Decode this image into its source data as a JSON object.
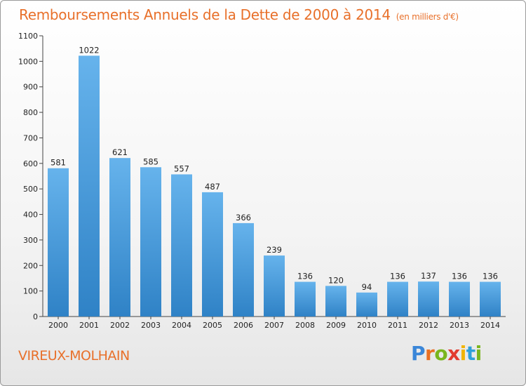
{
  "title": "Remboursements Annuels de la Dette de 2000 à 2014",
  "subtitle": "(en milliers d'€)",
  "commune": "VIREUX-MOLHAIN",
  "logo": {
    "letters": [
      "P",
      "r",
      "o",
      "x",
      "i",
      "t",
      "i"
    ],
    "colors": [
      "#3a86d8",
      "#e86f23",
      "#7ab51d",
      "#e23b2e",
      "#f1b400",
      "#2fa0d8",
      "#7ab51d"
    ]
  },
  "colors": {
    "title": "#e8702a",
    "bar_light": "#66b3ec",
    "bar_dark": "#2f82c6"
  },
  "chart_data": {
    "type": "bar",
    "title": "Remboursements Annuels de la Dette de 2000 à 2014",
    "subtitle": "(en milliers d'€)",
    "categories": [
      "2000",
      "2001",
      "2002",
      "2003",
      "2004",
      "2005",
      "2006",
      "2007",
      "2008",
      "2009",
      "2010",
      "2011",
      "2012",
      "2013",
      "2014"
    ],
    "values": [
      581,
      1022,
      621,
      585,
      557,
      487,
      366,
      239,
      136,
      120,
      94,
      136,
      137,
      136,
      136
    ],
    "ylim": [
      0,
      1100
    ],
    "yticks": [
      0,
      100,
      200,
      300,
      400,
      500,
      600,
      700,
      800,
      900,
      1000,
      1100
    ],
    "grid": false,
    "legend": "none"
  }
}
